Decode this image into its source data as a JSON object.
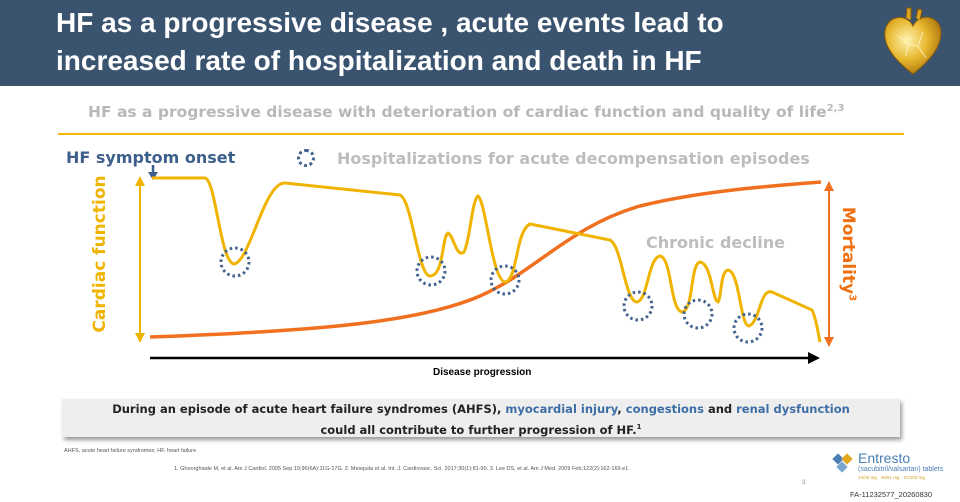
{
  "header": {
    "title_line1": "HF as a progressive disease , acute events lead to",
    "title_line2": "increased rate of hospitalization and death in HF",
    "bg_color": "#3a5470",
    "logo_icon": "golden-heart-icon"
  },
  "subtitle": {
    "text": "HF as a progressive disease with deterioration of cardiac function and quality of life",
    "sup": "2,3"
  },
  "diagram": {
    "onset_label": "HF symptom onset",
    "legend_label": "Hospitalizations for acute decompensation episodes",
    "chronic_label": "Chronic decline",
    "y_left_label": "Cardiac function",
    "y_right_label": "Mortality",
    "y_right_sup": "3",
    "x_label": "Disease progression",
    "cardiac_color": "#f0b400",
    "mortality_color": "#f07020",
    "marker_color": "#41628f"
  },
  "callout": {
    "prefix": "During an episode of acute heart failure syndromes (AHFS), ",
    "term1": "myocardial injury",
    "sep1": ", ",
    "term2": "congestions",
    "sep2": " and ",
    "term3": "renal dysfunction",
    "line2": "could all contribute to further progression of HF.",
    "sup": "1"
  },
  "footer": {
    "abbreviations": "AHFS, acute heart failure syndromes; HF, heart failure",
    "references": "1. Gheorghiade M, et al. Am J Cardiol. 2005 Sep 19;96(6A):11G-17G. 2. Mesquita et al. Int. J. Cardiovasc. Sci. 2017;30(1):81-90. 3. Lee DS, et al. Am J Med. 2009 Feb;122(2):162-169.e1.",
    "page_number": "3",
    "brand_name": "Entresto",
    "brand_sub": "(sacubitril/valsartan) tablets",
    "brand_dose": "24/26 mg · 49/51 mg · 97/103 mg",
    "code": "FA-11232577_20260830"
  }
}
